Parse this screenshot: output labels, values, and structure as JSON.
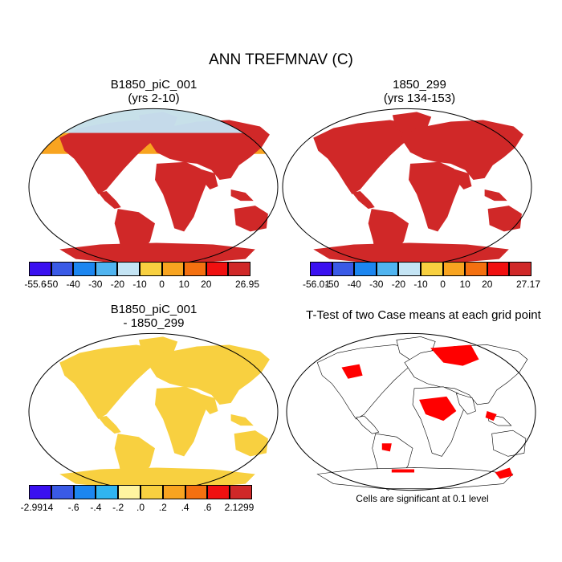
{
  "main_title": "ANN TREFMNAV (C)",
  "panels": [
    {
      "title_line1": "B1850_piC_001",
      "title_line2": "(yrs 2-10)"
    },
    {
      "title_line1": "1850_299",
      "title_line2": "(yrs 134-153)"
    },
    {
      "title_line1": "B1850_piC_001",
      "title_line2": "- 1850_299"
    },
    {
      "title_line1": "T-Test of two Case means at each grid point",
      "title_line2": ""
    }
  ],
  "colorbars": {
    "case1": {
      "colors": [
        "#3a10f0",
        "#3a5ae6",
        "#1c86f0",
        "#50b4f0",
        "#c4e4f4",
        "#f8d040",
        "#f8a420",
        "#f47010",
        "#f01010",
        "#d02828"
      ],
      "labels": [
        "-55.6",
        "-50",
        "-40",
        "-30",
        "-20",
        "-10",
        "0",
        "10",
        "20",
        "26.95"
      ]
    },
    "case2": {
      "colors": [
        "#3a10f0",
        "#3a5ae6",
        "#1c86f0",
        "#50b4f0",
        "#c4e4f4",
        "#f8d040",
        "#f8a420",
        "#f47010",
        "#f01010",
        "#d02828"
      ],
      "labels": [
        "-56.01",
        "-50",
        "-40",
        "-30",
        "-20",
        "-10",
        "0",
        "10",
        "20",
        "27.17"
      ]
    },
    "diff": {
      "colors": [
        "#3a10f0",
        "#3a5ae6",
        "#1c86f0",
        "#30b4f0",
        "#fff4a0",
        "#f8d040",
        "#f8a420",
        "#f47010",
        "#f01010",
        "#d02828"
      ],
      "labels": [
        "-2.9914",
        "-.6",
        "-.4",
        "-.2",
        ".0",
        ".2",
        ".4",
        ".6",
        "2.1299"
      ]
    }
  },
  "significance_note": "Cells are significant at 0.1 level",
  "colors": {
    "ocean": "#ffffff",
    "coast": "#000000",
    "significant": "#ff0000"
  }
}
